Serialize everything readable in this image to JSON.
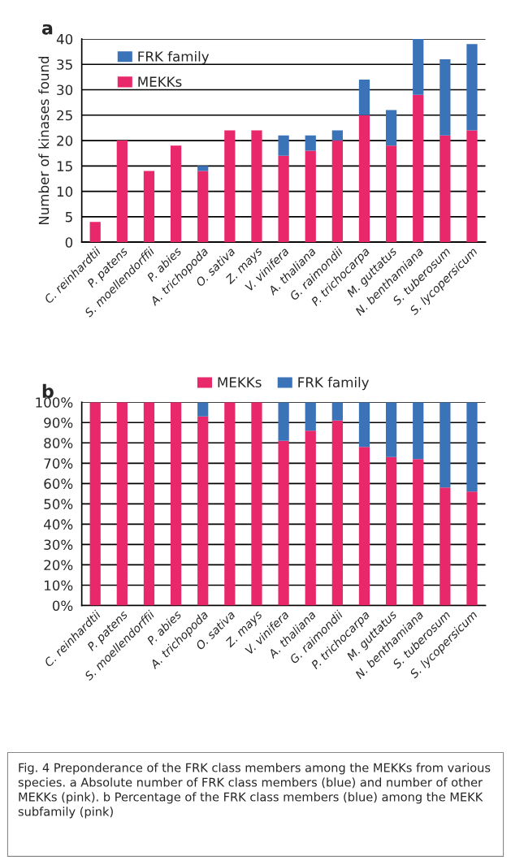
{
  "chart_data": [
    {
      "type": "bar",
      "title": "a",
      "ylabel": "Number of kinases found",
      "stacked": true,
      "categories": [
        "C. reinhardtii",
        "P. patens",
        "S. moellendorffii",
        "P. abies",
        "A. trichopoda",
        "O. sativa",
        "Z. mays",
        "V. vinifera",
        "A. thaliana",
        "G. raimondii",
        "P. trichocarpa",
        "M. guttatus",
        "N. benthamiana",
        "S. tuberosum",
        "S. lycopersicum"
      ],
      "series": [
        {
          "name": "MEKKs",
          "color": "#e8286b",
          "values": [
            4,
            20,
            14,
            19,
            14,
            22,
            22,
            17,
            18,
            20,
            25,
            19,
            29,
            21,
            22
          ]
        },
        {
          "name": "FRK family",
          "color": "#3a73b8",
          "values": [
            0,
            0,
            0,
            0,
            1,
            0,
            0,
            4,
            3,
            2,
            7,
            7,
            11,
            15,
            17
          ]
        }
      ],
      "ylim": [
        0,
        40
      ],
      "yticks": [
        0,
        5,
        10,
        15,
        20,
        25,
        30,
        35,
        40
      ],
      "grid": "y",
      "legend": "top left"
    },
    {
      "type": "bar",
      "title": "b",
      "stacked": true,
      "categories": [
        "C. reinhardtii",
        "P. patens",
        "S. moellendorffii",
        "P. abies",
        "A. trichopoda",
        "O. sativa",
        "Z. mays",
        "V. vinifera",
        "A. thaliana",
        "G. raimondii",
        "P. trichocarpa",
        "M. guttatus",
        "N. benthamiana",
        "S. tuberosum",
        "S. lycopersicum"
      ],
      "series": [
        {
          "name": "MEKKs",
          "color": "#e8286b",
          "values": [
            100,
            100,
            100,
            100,
            93,
            100,
            100,
            81,
            86,
            91,
            78,
            73,
            72,
            58,
            56
          ]
        },
        {
          "name": "FRK family",
          "color": "#3a73b8",
          "values": [
            0,
            0,
            0,
            0,
            7,
            0,
            0,
            19,
            14,
            9,
            22,
            27,
            28,
            42,
            44
          ]
        }
      ],
      "ylim": [
        0,
        100
      ],
      "yticks": [
        {
          "value": 0,
          "label": "0%"
        },
        {
          "value": 10,
          "label": "10%"
        },
        {
          "value": 20,
          "label": "20%"
        },
        {
          "value": 30,
          "label": "30%"
        },
        {
          "value": 40,
          "label": "40%"
        },
        {
          "value": 50,
          "label": "50%"
        },
        {
          "value": 60,
          "label": "60%"
        },
        {
          "value": 70,
          "label": "70%"
        },
        {
          "value": 80,
          "label": "80%"
        },
        {
          "value": 90,
          "label": "90%"
        },
        {
          "value": 100,
          "label": "100%"
        }
      ],
      "grid": "y",
      "legend": "top",
      "annotations": [
        "Fig. 4 Preponderance of the FRK class members among the MEKKs from various species. a Absolute number of FRK class members (blue) and number of other MEKKs (pink). b Percentage of the FRK class members (blue) among the MEKK subfamily (pink)"
      ]
    }
  ]
}
